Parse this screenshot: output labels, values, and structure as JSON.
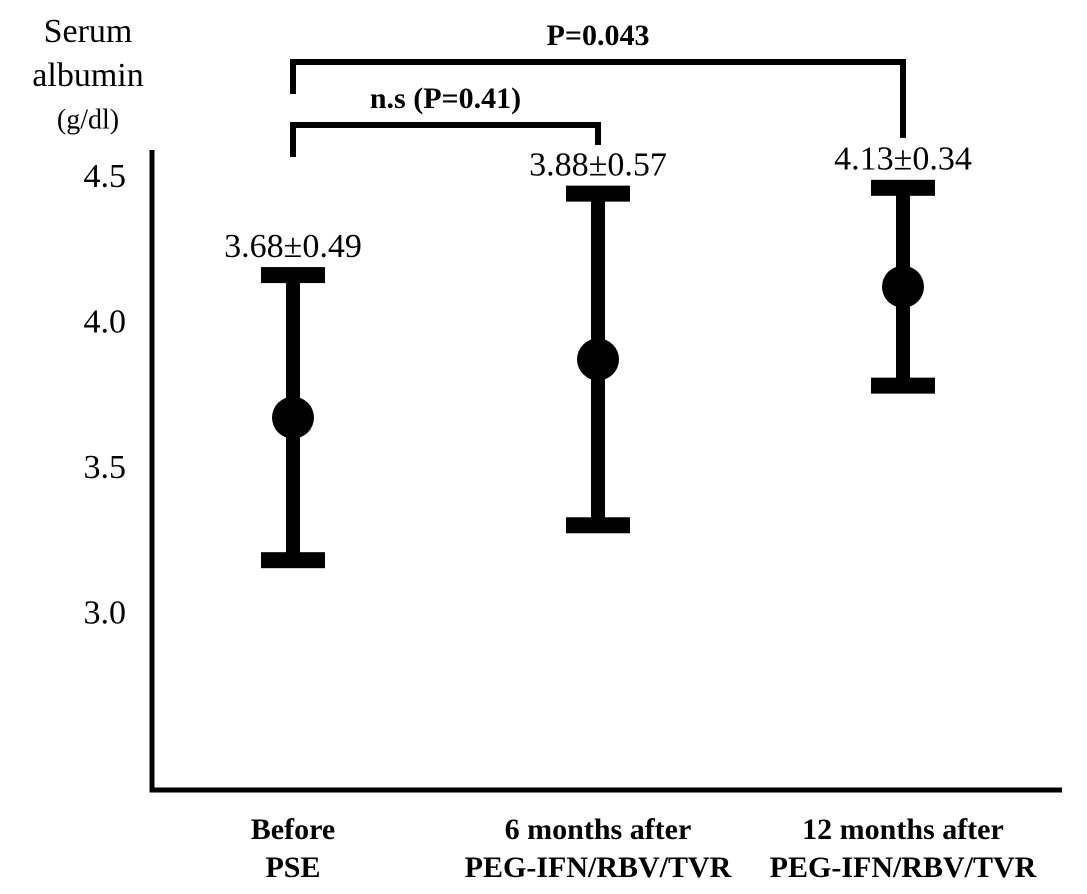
{
  "chart_data": {
    "type": "errorbar",
    "ylabel": [
      "Serum",
      "albumin",
      "(g/dl)"
    ],
    "categories": [
      [
        "Before",
        "PSE"
      ],
      [
        "6 months after",
        "PEG-IFN/RBV/TVR"
      ],
      [
        "12 months after",
        "PEG-IFN/RBV/TVR"
      ]
    ],
    "series": [
      {
        "color": "#000000",
        "values": [
          3.68,
          3.88,
          4.13
        ],
        "errors": [
          0.49,
          0.57,
          0.34
        ],
        "value_labels": [
          "3.68±0.49",
          "3.88±0.57",
          "4.13±0.34"
        ]
      }
    ],
    "ylim": [
      2.4,
      4.6
    ],
    "yticks": [
      {
        "value": 3,
        "label": "3.0"
      },
      3.5,
      {
        "value": 4,
        "label": "4.0"
      },
      4.5
    ],
    "annotations": [
      {
        "text": "n.s (P=0.41)",
        "between": [
          0,
          1
        ]
      },
      {
        "text": "P=0.043",
        "between": [
          0,
          2
        ]
      }
    ]
  }
}
